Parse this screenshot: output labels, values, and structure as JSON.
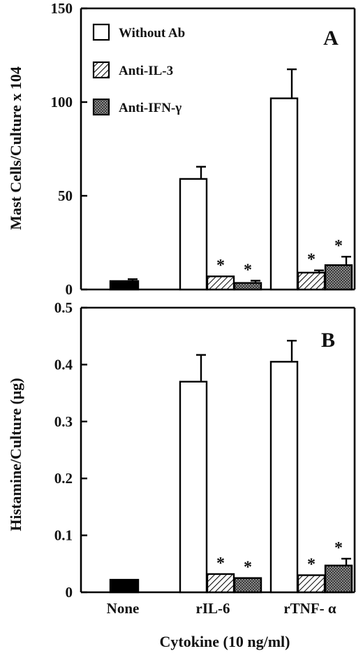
{
  "figure": {
    "xlabel": "Cytokine (10 ng/ml)",
    "categories": [
      "None",
      "rIL-6",
      "rTNF- α"
    ]
  },
  "legend": {
    "items": [
      {
        "label": "Without Ab",
        "pattern": "white"
      },
      {
        "label": "Anti-IL-3",
        "pattern": "hatch"
      },
      {
        "label": "Anti-IFN-γ",
        "pattern": "crosshatch"
      }
    ]
  },
  "colors": {
    "ink": "#000000",
    "background": "#ffffff"
  },
  "chart_data": [
    {
      "type": "bar",
      "panel_label": "A",
      "ylabel": "Mast Cells/Culture x 104",
      "ylim": [
        0,
        150
      ],
      "yticks": [
        "0",
        "50",
        "100",
        "150"
      ],
      "ytick_values": [
        0,
        50,
        100,
        150
      ],
      "categories": [
        "None",
        "rIL-6",
        "rTNF- α"
      ],
      "control": {
        "name": "",
        "values": [
          4.5,
          null,
          null
        ],
        "errors": [
          1.0,
          null,
          null
        ]
      },
      "series": [
        {
          "name": "Without Ab",
          "values": [
            null,
            59,
            102
          ],
          "errors": [
            null,
            6.5,
            15.5
          ],
          "significant": [
            false,
            false,
            false
          ]
        },
        {
          "name": "Anti-IL-3",
          "values": [
            null,
            7,
            9
          ],
          "errors": [
            null,
            0,
            1.2
          ],
          "significant": [
            false,
            true,
            true
          ]
        },
        {
          "name": "Anti-IFN-γ",
          "values": [
            null,
            3.5,
            13
          ],
          "errors": [
            null,
            1.2,
            4.5
          ],
          "significant": [
            false,
            true,
            true
          ]
        }
      ],
      "significance_marker": "*"
    },
    {
      "type": "bar",
      "panel_label": "B",
      "ylabel": "Histamine/Culture (μg)",
      "ylim": [
        0,
        0.5
      ],
      "yticks": [
        "0",
        "0.1",
        "0.2",
        "0.3",
        "0.4",
        "0.5"
      ],
      "ytick_values": [
        0,
        0.1,
        0.2,
        0.3,
        0.4,
        0.5
      ],
      "categories": [
        "None",
        "rIL-6",
        "rTNF- α"
      ],
      "control": {
        "name": "",
        "values": [
          0.022,
          null,
          null
        ],
        "errors": [
          0,
          null,
          null
        ]
      },
      "series": [
        {
          "name": "Without Ab",
          "values": [
            null,
            0.37,
            0.405
          ],
          "errors": [
            null,
            0.047,
            0.037
          ],
          "significant": [
            false,
            false,
            false
          ]
        },
        {
          "name": "Anti-IL-3",
          "values": [
            null,
            0.032,
            0.03
          ],
          "errors": [
            null,
            0,
            0
          ],
          "significant": [
            false,
            true,
            true
          ]
        },
        {
          "name": "Anti-IFN-γ",
          "values": [
            null,
            0.025,
            0.047
          ],
          "errors": [
            null,
            0,
            0.012
          ],
          "significant": [
            false,
            true,
            true
          ]
        }
      ],
      "significance_marker": "*"
    }
  ]
}
